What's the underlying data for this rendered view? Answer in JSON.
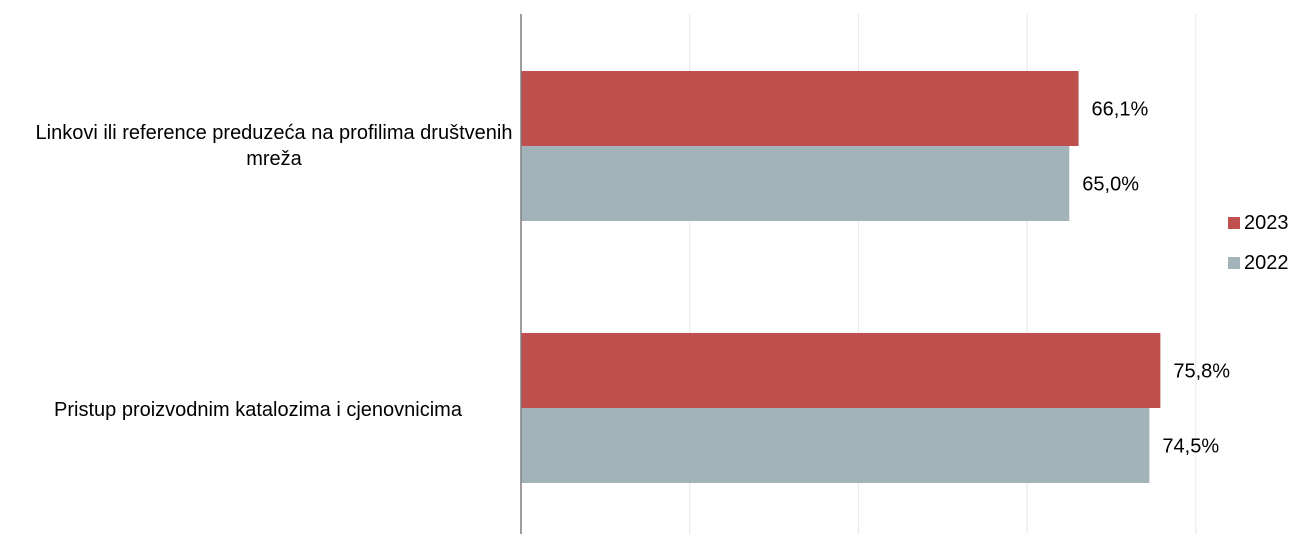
{
  "chart_data": {
    "type": "bar",
    "orientation": "horizontal",
    "categories": [
      "Linkovi ili reference preduzeća na profilima društvenih mreža",
      "Pristup proizvodnim katalozima i cjenovnicima"
    ],
    "series": [
      {
        "name": "2023",
        "values": [
          66.1,
          75.8
        ],
        "labels": [
          "66,1%",
          "75,8%"
        ],
        "color": "#C0504D"
      },
      {
        "name": "2022",
        "values": [
          65.0,
          74.5
        ],
        "labels": [
          "65,0%",
          "74,5%"
        ],
        "color": "#A2B3BA"
      }
    ],
    "xlim": [
      0,
      80
    ],
    "grid": true,
    "legend": "right"
  }
}
